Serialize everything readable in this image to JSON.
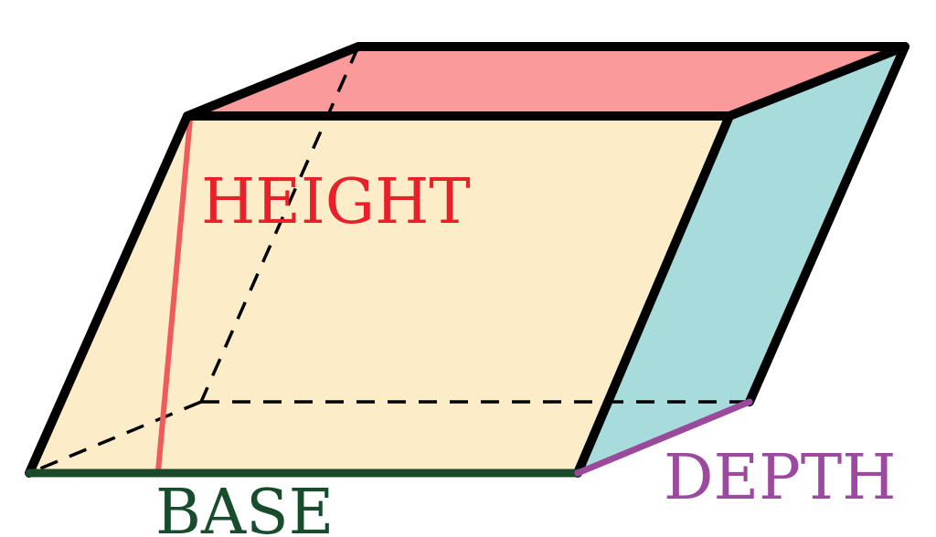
{
  "labels": {
    "height": "HEIGHT",
    "base": "BASE",
    "depth": "DEPTH"
  },
  "colors": {
    "front_face": "#fdecc8",
    "top_face": "#fa9a9a",
    "side_face": "#a8dcdc",
    "outline": "#000000",
    "height_line": "#f05a5a",
    "height_text": "#e8202a",
    "base_line": "#1a4a2a",
    "base_text": "#174c2c",
    "depth_line": "#9b4a9b",
    "depth_text": "#9b4aa0"
  }
}
